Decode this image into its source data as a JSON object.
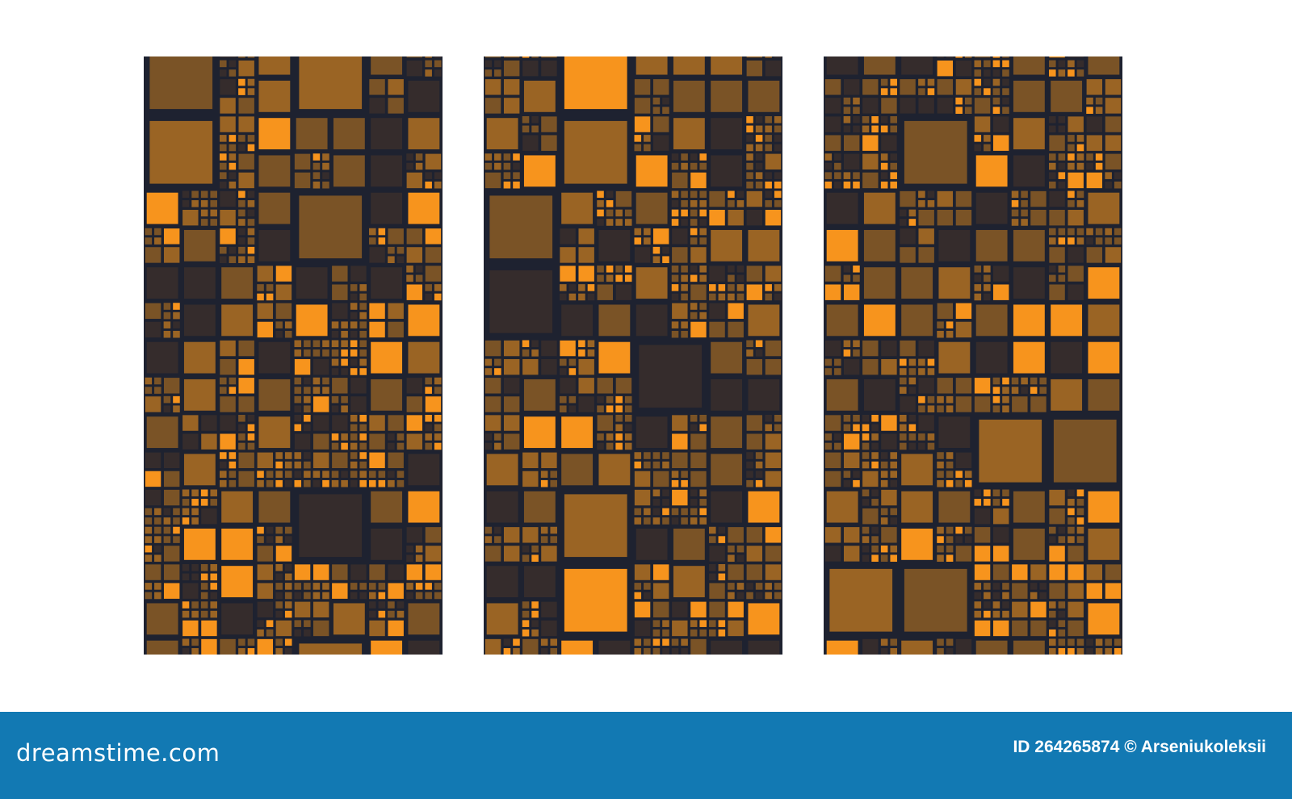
{
  "panels": [
    {
      "seed": 11
    },
    {
      "seed": 27
    },
    {
      "seed": 53
    }
  ],
  "colors": {
    "background": "#1e2230",
    "tiles": [
      "#352c2c",
      "#7a5326",
      "#9a6424",
      "#f7941d"
    ],
    "footer": "#1279b3"
  },
  "footer": {
    "logo": "dreamstime.com",
    "credit": "ID 264265874 © Arseniukoleksii"
  }
}
